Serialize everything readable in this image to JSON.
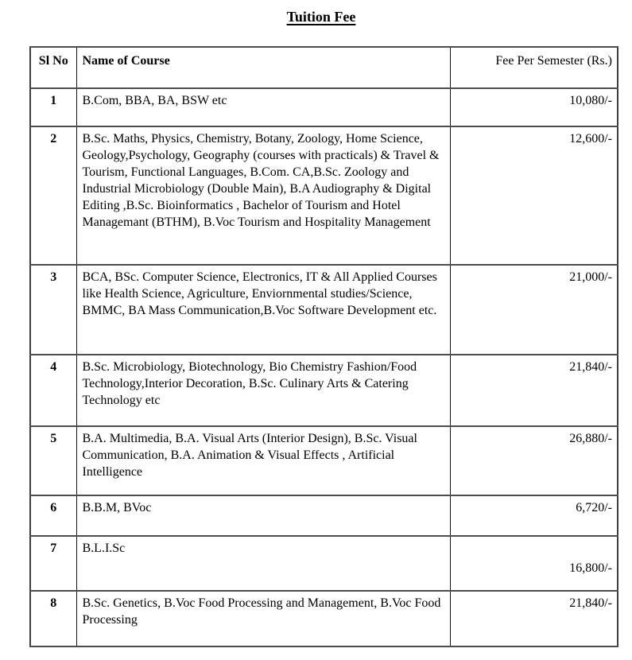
{
  "title": "Tuition Fee",
  "table": {
    "headers": {
      "sl_no": "Sl No",
      "course": "Name of Course",
      "fee": "Fee Per Semester (Rs.)"
    },
    "rows": [
      {
        "sl_no": "1",
        "course": "B.Com, BBA, BA, BSW etc",
        "fee": "10,080/-"
      },
      {
        "sl_no": "2",
        "course": "B.Sc. Maths, Physics, Chemistry, Botany, Zoology, Home Science, Geology,Psychology, Geography (courses with practicals) & Travel & Tourism, Functional Languages, B.Com. CA,B.Sc. Zoology and Industrial Microbiology (Double Main), B.A Audiography & Digital Editing ,B.Sc. Bioinformatics , Bachelor of Tourism and Hotel Managemant (BTHM), B.Voc Tourism and Hospitality Management",
        "fee": "12,600/-"
      },
      {
        "sl_no": "3",
        "course": "BCA, BSc. Computer Science, Electronics, IT & All Applied Courses like Health Science, Agriculture, Enviornmental studies/Science, BMMC, BA Mass Communication,B.Voc Software Development etc.",
        "fee": "21,000/-"
      },
      {
        "sl_no": "4",
        "course": "B.Sc. Microbiology, Biotechnology, Bio Chemistry Fashion/Food Technology,Interior Decoration, B.Sc. Culinary Arts & Catering Technology etc",
        "fee": "21,840/-"
      },
      {
        "sl_no": "5",
        "course": "B.A. Multimedia, B.A. Visual Arts (Interior Design), B.Sc. Visual Communication, B.A. Animation & Visual Effects , Artificial Intelligence",
        "fee": "26,880/-"
      },
      {
        "sl_no": "6",
        "course": "B.B.M, BVoc",
        "fee": "6,720/-"
      },
      {
        "sl_no": "7",
        "course": "B.L.I.Sc",
        "fee": "16,800/-"
      },
      {
        "sl_no": "8",
        "course": "B.Sc. Genetics, B.Voc Food Processing and Management, B.Voc Food Processing",
        "fee": "21,840/-"
      }
    ]
  },
  "colors": {
    "text": "#000000",
    "background": "#ffffff",
    "rule_horizontal": "#4d4d4d",
    "rule_vertical": "#111111"
  }
}
